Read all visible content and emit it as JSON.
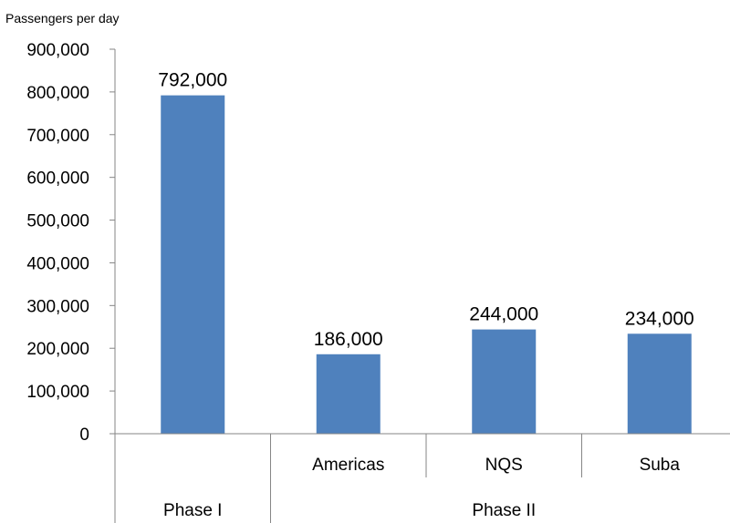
{
  "chart_data": {
    "type": "bar",
    "title": "",
    "ylabel": "Passengers per day",
    "xlabel": "",
    "ylim": [
      0,
      900000
    ],
    "ytick_step": 100000,
    "ytick_labels": [
      "0",
      "100,000",
      "200,000",
      "300,000",
      "400,000",
      "500,000",
      "600,000",
      "700,000",
      "800,000",
      "900,000"
    ],
    "categories": [
      "",
      "Americas",
      "NQS",
      "Suba"
    ],
    "groups": [
      {
        "label": "Phase I",
        "span": 1
      },
      {
        "label": "Phase II",
        "span": 3
      }
    ],
    "values": [
      792000,
      186000,
      244000,
      234000
    ],
    "data_labels": [
      "792,000",
      "186,000",
      "244,000",
      "234,000"
    ],
    "bar_color": "#4f81bd",
    "grid": false,
    "legend": "none"
  }
}
